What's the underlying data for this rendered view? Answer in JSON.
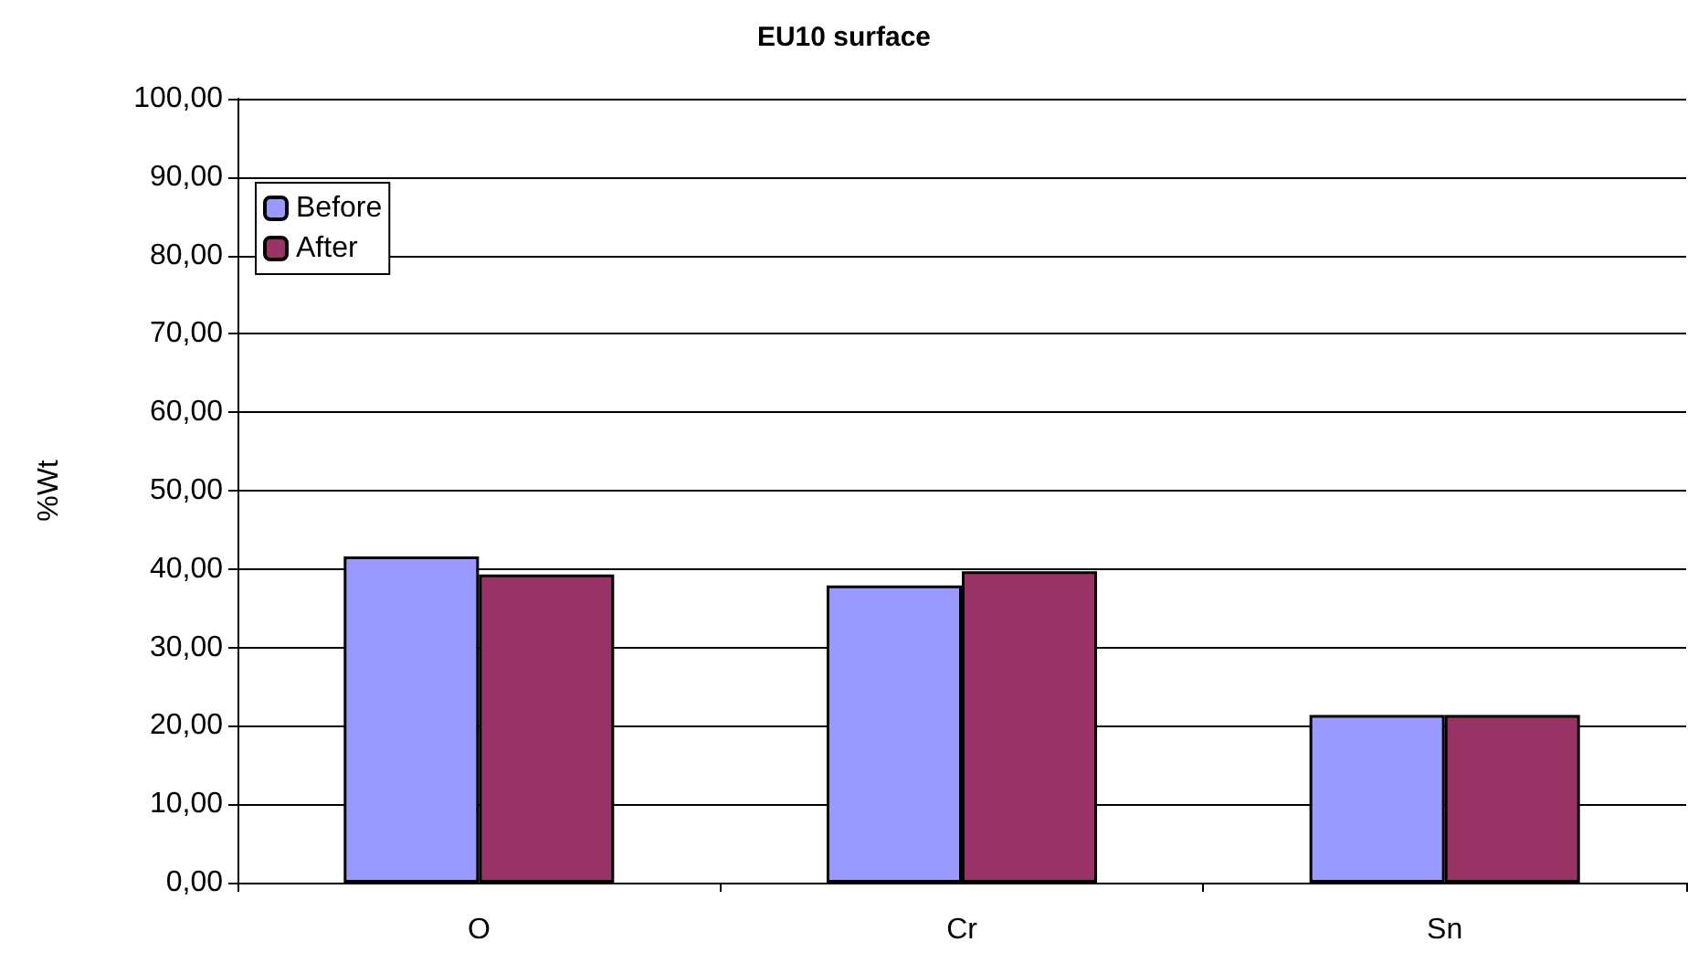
{
  "chart_data": {
    "type": "bar",
    "title": "EU10 surface",
    "ylabel": "%Wt",
    "categories": [
      "O",
      "Cr",
      "Sn"
    ],
    "series": [
      {
        "name": "Before",
        "color": "#9999ff",
        "values": [
          41.6,
          37.9,
          21.4
        ]
      },
      {
        "name": "After",
        "color": "#993366",
        "values": [
          39.3,
          39.7,
          21.4
        ]
      }
    ],
    "ylim": [
      0,
      100
    ],
    "yticks": [
      {
        "value": 0,
        "label": "0,00"
      },
      {
        "value": 10,
        "label": "10,00"
      },
      {
        "value": 20,
        "label": "20,00"
      },
      {
        "value": 30,
        "label": "30,00"
      },
      {
        "value": 40,
        "label": "40,00"
      },
      {
        "value": 50,
        "label": "50,00"
      },
      {
        "value": 60,
        "label": "60,00"
      },
      {
        "value": 70,
        "label": "70,00"
      },
      {
        "value": 80,
        "label": "80,00"
      },
      {
        "value": 90,
        "label": "90,00"
      },
      {
        "value": 100,
        "label": "100,00"
      }
    ],
    "grid": "y",
    "legend": "top left"
  }
}
